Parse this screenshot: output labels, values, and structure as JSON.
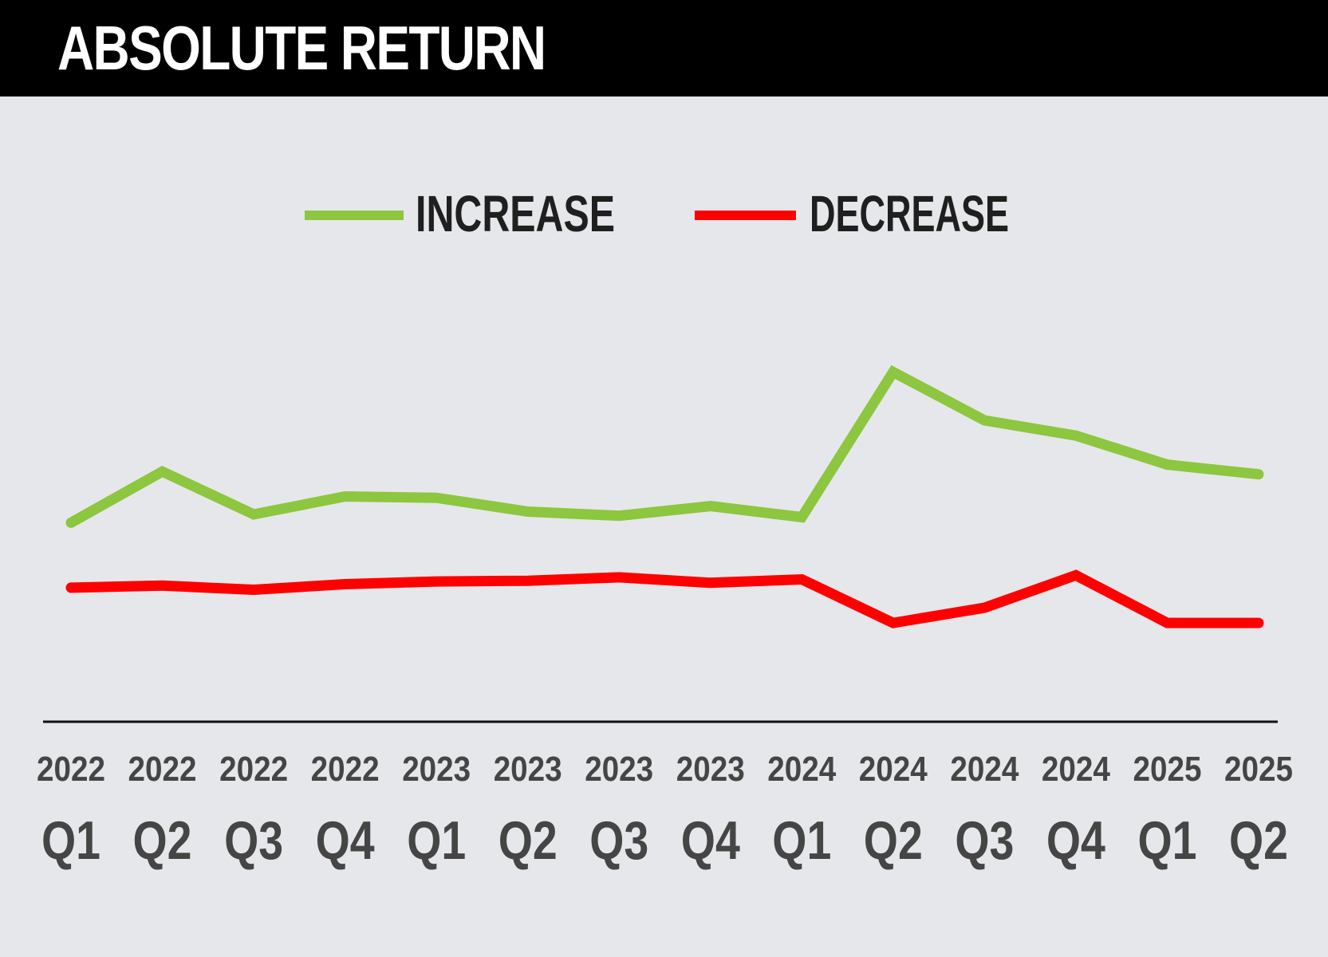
{
  "header": {
    "title": "ABSOLUTE RETURN"
  },
  "colors": {
    "header_background": "#000000",
    "title_text": "#ffffff",
    "plot_background": "#e6e7eb",
    "axis_line": "#111111",
    "legend_text": "#1f1f1f",
    "tick_text": "#454545"
  },
  "chart_data": {
    "type": "line",
    "title": "ABSOLUTE RETURN",
    "categories": [
      {
        "year": "2022",
        "quarter": "Q1"
      },
      {
        "year": "2022",
        "quarter": "Q2"
      },
      {
        "year": "2022",
        "quarter": "Q3"
      },
      {
        "year": "2022",
        "quarter": "Q4"
      },
      {
        "year": "2023",
        "quarter": "Q1"
      },
      {
        "year": "2023",
        "quarter": "Q2"
      },
      {
        "year": "2023",
        "quarter": "Q3"
      },
      {
        "year": "2023",
        "quarter": "Q4"
      },
      {
        "year": "2024",
        "quarter": "Q1"
      },
      {
        "year": "2024",
        "quarter": "Q2"
      },
      {
        "year": "2024",
        "quarter": "Q3"
      },
      {
        "year": "2024",
        "quarter": "Q4"
      },
      {
        "year": "2025",
        "quarter": "Q1"
      },
      {
        "year": "2025",
        "quarter": "Q2"
      }
    ],
    "series": [
      {
        "name": "INCREASE",
        "color": "#8dc63f",
        "values": [
          28.8,
          36.2,
          30.0,
          32.6,
          32.4,
          30.4,
          29.8,
          31.2,
          29.6,
          50.6,
          43.6,
          41.4,
          37.2,
          35.8
        ]
      },
      {
        "name": "DECREASE",
        "color": "#ff0000",
        "values": [
          19.4,
          19.7,
          19.1,
          19.9,
          20.3,
          20.4,
          20.9,
          20.1,
          20.6,
          14.3,
          16.5,
          21.2,
          14.3,
          14.3
        ]
      }
    ],
    "ylim": [
      0,
      75
    ],
    "grid": false,
    "legend": "top-center",
    "yaxis_labels_visible": false
  }
}
